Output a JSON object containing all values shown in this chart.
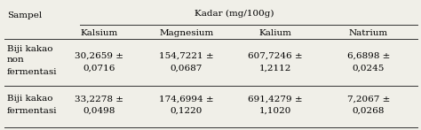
{
  "title": "Kadar (mg/100g)",
  "col_header_1": "Sampel",
  "col_header_2": "Kalsium",
  "col_header_3": "Magnesium",
  "col_header_4": "Kalium",
  "col_header_5": "Natrium",
  "row1_label_lines": [
    "Biji kakao",
    "non",
    "fermentasi"
  ],
  "row2_label_lines": [
    "Biji kakao",
    "fermentasi"
  ],
  "row1_kalsium_l1": "30,2659 ±",
  "row1_kalsium_l2": "0,0716",
  "row1_magnesium_l1": "154,7221 ±",
  "row1_magnesium_l2": "0,0687",
  "row1_kalium_l1": "607,7246 ±",
  "row1_kalium_l2": "1,2112",
  "row1_natrium_l1": "6,6898 ±",
  "row1_natrium_l2": "0,0245",
  "row2_kalsium_l1": "33,2278 ±",
  "row2_kalsium_l2": "0,0498",
  "row2_magnesium_l1": "174,6994 ±",
  "row2_magnesium_l2": "0,1220",
  "row2_kalium_l1": "691,4279 ±",
  "row2_kalium_l2": "1,1020",
  "row2_natrium_l1": "7,2067 ±",
  "row2_natrium_l2": "0,0268",
  "bg_color": "#f0efe8",
  "font_size": 7.5,
  "line_color": "#333333"
}
